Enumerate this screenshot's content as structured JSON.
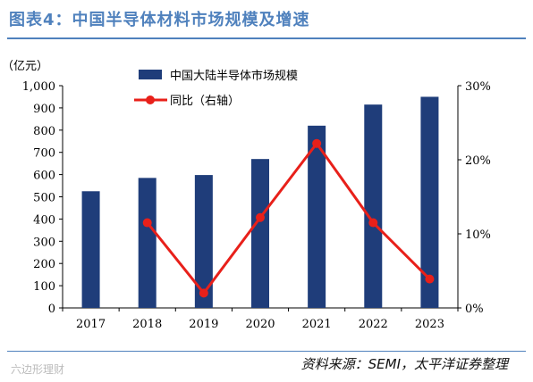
{
  "header": {
    "title": "图表4：中国半导体材料市场规模及增速"
  },
  "footer": {
    "source": "资料来源：SEMI，太平洋证券整理",
    "watermark": "六边形理财"
  },
  "chart_data": {
    "type": "bar",
    "categories": [
      "2017",
      "2018",
      "2019",
      "2020",
      "2021",
      "2022",
      "2023"
    ],
    "series": [
      {
        "name": "中国大陆半导体市场规模",
        "type": "bar",
        "axis": "left",
        "values": [
          525,
          585,
          598,
          670,
          820,
          915,
          950
        ]
      },
      {
        "name": "同比（右轴）",
        "type": "line",
        "axis": "right",
        "values": [
          null,
          11.5,
          2.0,
          12.2,
          22.2,
          11.5,
          3.9
        ]
      }
    ],
    "ylabel": "（亿元）",
    "ylim": [
      0,
      1000
    ],
    "yticks": [
      "0",
      "100",
      "200",
      "300",
      "400",
      "500",
      "600",
      "700",
      "800",
      "900",
      "1,000"
    ],
    "y2lim": [
      0,
      30
    ],
    "y2ticks": [
      "0%",
      "10%",
      "20%",
      "30%"
    ],
    "legend": "top-left",
    "colors": {
      "bar": "#1f3d7a",
      "line": "#e8201a",
      "title": "#4f81bd"
    }
  }
}
